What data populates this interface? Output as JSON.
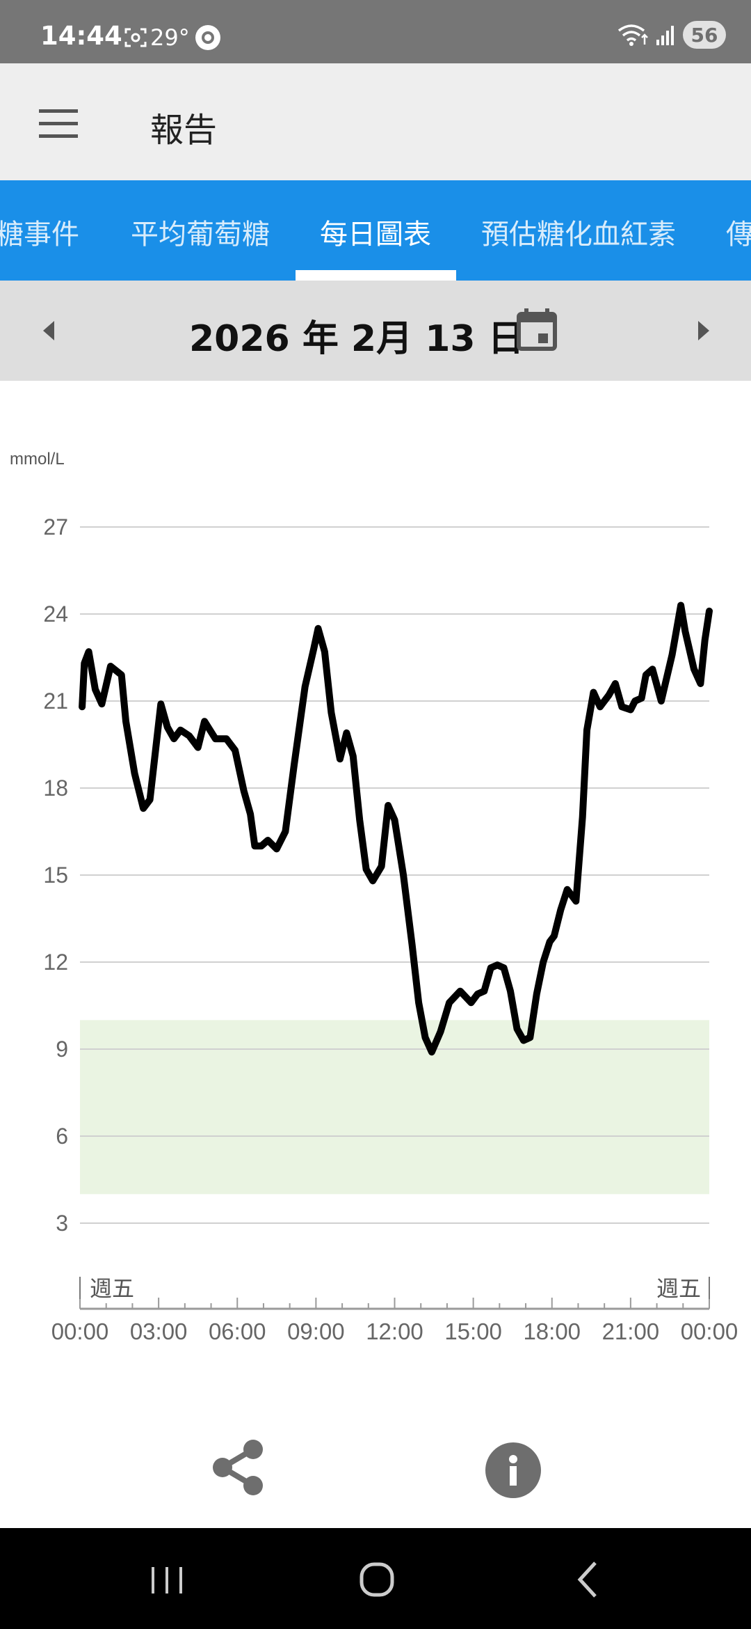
{
  "status_bar": {
    "time": "14:44",
    "temperature": "29°",
    "battery": "56"
  },
  "app_bar": {
    "title": "報告"
  },
  "tabs": [
    {
      "label": "糖事件"
    },
    {
      "label": "平均葡萄糖"
    },
    {
      "label": "每日圖表"
    },
    {
      "label": "預估糖化血紅素"
    },
    {
      "label": "傳"
    }
  ],
  "active_tab": 2,
  "date_bar": {
    "date": "2026 年 2月 13 日"
  },
  "chart_data": {
    "type": "line",
    "ylabel": "mmol/L",
    "ylim": [
      3,
      27
    ],
    "y_ticks": [
      "27",
      "24",
      "21",
      "18",
      "15",
      "12",
      "9",
      "6",
      "3"
    ],
    "x_ticks": [
      "00:00",
      "03:00",
      "06:00",
      "09:00",
      "12:00",
      "15:00",
      "18:00",
      "21:00",
      "00:00"
    ],
    "day_labels": [
      "週五",
      "週五"
    ],
    "target_range": [
      4,
      10
    ],
    "grid": true,
    "colors": {
      "line": "#000000",
      "target_band": "#eaf4e2",
      "grid": "#d0d0d0"
    },
    "series": [
      {
        "x": [
          "00:05",
          "00:10",
          "00:20",
          "00:35",
          "00:50",
          "01:10",
          "01:35",
          "01:45",
          "02:05",
          "02:25",
          "02:40",
          "03:05",
          "03:20",
          "03:35",
          "03:50",
          "04:10",
          "04:30",
          "04:45",
          "05:10",
          "05:20",
          "05:35",
          "05:55",
          "06:15",
          "06:30",
          "06:40",
          "06:55",
          "07:10",
          "07:30",
          "07:50",
          "08:10",
          "08:35",
          "08:55",
          "09:05",
          "09:20",
          "09:35",
          "09:55",
          "10:10",
          "10:25",
          "10:40",
          "10:55",
          "11:10",
          "11:30",
          "11:45",
          "12:00",
          "12:20",
          "12:40",
          "12:55",
          "13:10",
          "13:25",
          "13:45",
          "14:05",
          "14:30",
          "14:55",
          "15:10",
          "15:25",
          "15:40",
          "15:55",
          "16:10",
          "16:25",
          "16:40",
          "16:55",
          "17:10",
          "17:25",
          "17:40",
          "17:55",
          "18:05",
          "18:20",
          "18:35",
          "18:55",
          "19:10",
          "19:20",
          "19:35",
          "19:50",
          "20:10",
          "20:25",
          "20:40",
          "21:00",
          "21:10",
          "21:25",
          "21:35",
          "21:50",
          "22:10",
          "22:35",
          "22:55",
          "23:05",
          "23:25",
          "23:40",
          "23:50",
          "24:00"
        ],
        "values": [
          20.8,
          22.3,
          22.7,
          21.4,
          20.9,
          22.2,
          21.9,
          20.3,
          18.5,
          17.3,
          17.6,
          20.9,
          20.1,
          19.7,
          20.0,
          19.8,
          19.4,
          20.3,
          19.7,
          19.7,
          19.7,
          19.3,
          17.9,
          17.1,
          16.0,
          16.0,
          16.2,
          15.9,
          16.5,
          18.8,
          21.5,
          22.8,
          23.5,
          22.7,
          20.6,
          19.0,
          19.9,
          19.1,
          16.9,
          15.2,
          14.8,
          15.3,
          17.4,
          16.9,
          15.0,
          12.6,
          10.6,
          9.4,
          8.9,
          9.6,
          10.6,
          11.0,
          10.6,
          10.9,
          11.0,
          11.8,
          11.9,
          11.8,
          11.0,
          9.7,
          9.3,
          9.4,
          10.9,
          12.0,
          12.7,
          12.9,
          13.8,
          14.5,
          14.1,
          17.0,
          20.0,
          21.3,
          20.8,
          21.2,
          21.6,
          20.8,
          20.7,
          21.0,
          21.1,
          21.9,
          22.1,
          21.0,
          22.6,
          24.3,
          23.4,
          22.1,
          21.6,
          23.1,
          24.1
        ]
      }
    ]
  }
}
